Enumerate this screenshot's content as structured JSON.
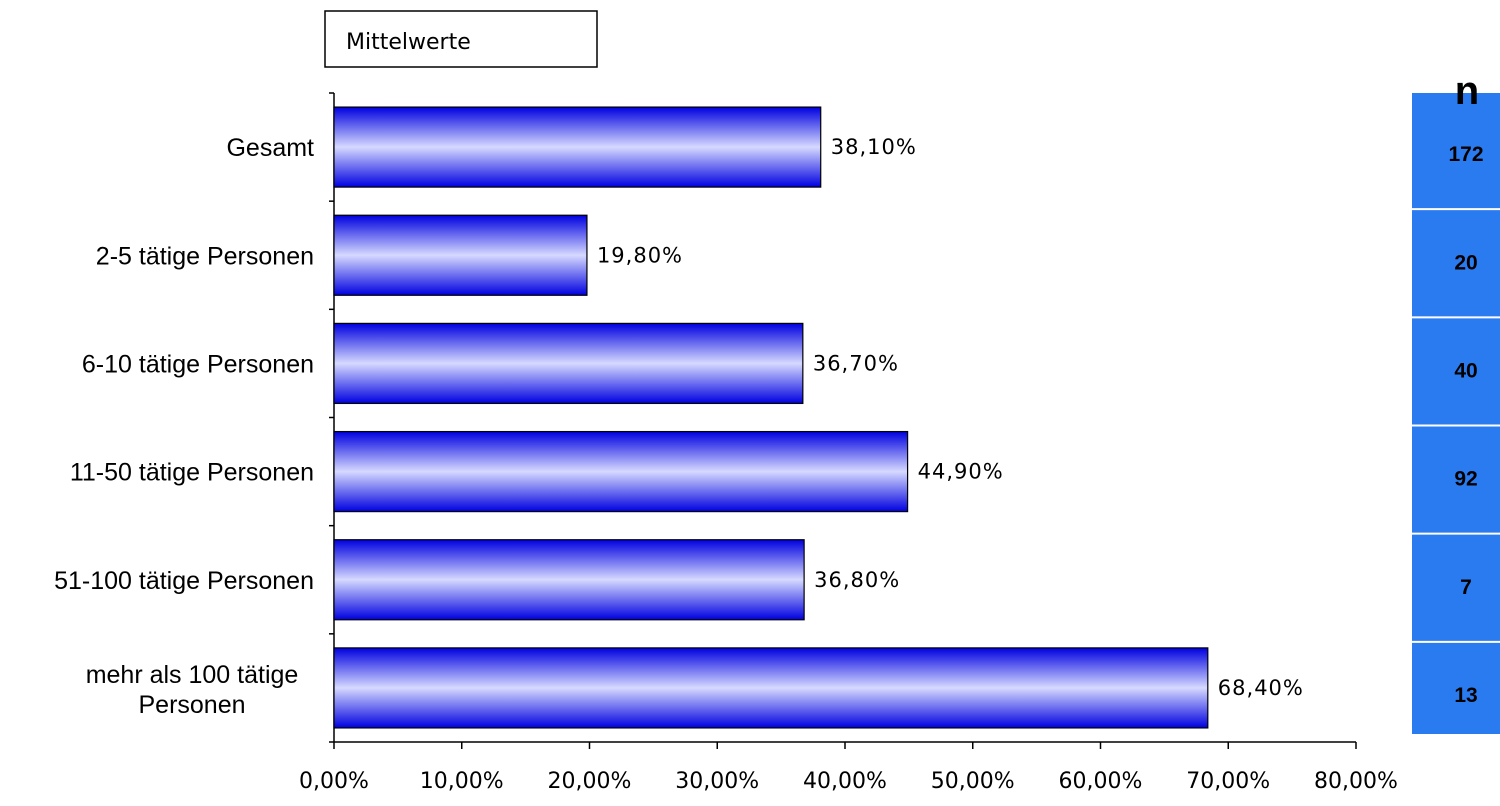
{
  "chart_data": {
    "type": "bar",
    "orientation": "horizontal",
    "title": "Mittelwerte",
    "categories": [
      "Gesamt",
      "2-5 tätige Personen",
      "6-10 tätige Personen",
      "11-50 tätige Personen",
      "51-100 tätige Personen",
      "mehr als 100 tätige Personen"
    ],
    "values": [
      38.1,
      19.8,
      36.7,
      44.9,
      36.8,
      68.4
    ],
    "value_labels": [
      "38,10%",
      "19,80%",
      "36,70%",
      "44,90%",
      "36,80%",
      "68,40%"
    ],
    "xlim": [
      0,
      80
    ],
    "xticks": [
      0,
      10,
      20,
      30,
      40,
      50,
      60,
      70,
      80
    ],
    "xtick_labels": [
      "0,00%",
      "10,00%",
      "20,00%",
      "30,00%",
      "40,00%",
      "50,00%",
      "60,00%",
      "70,00%",
      "80,00%"
    ],
    "grid": false,
    "n_header": "n",
    "n_values": [
      "172",
      "20",
      "40",
      "92",
      "7",
      "13"
    ],
    "colors": {
      "bar_edge": "#0000e0",
      "bar_center": "#d6d9ff",
      "n_column": "#2b7bf0"
    }
  }
}
